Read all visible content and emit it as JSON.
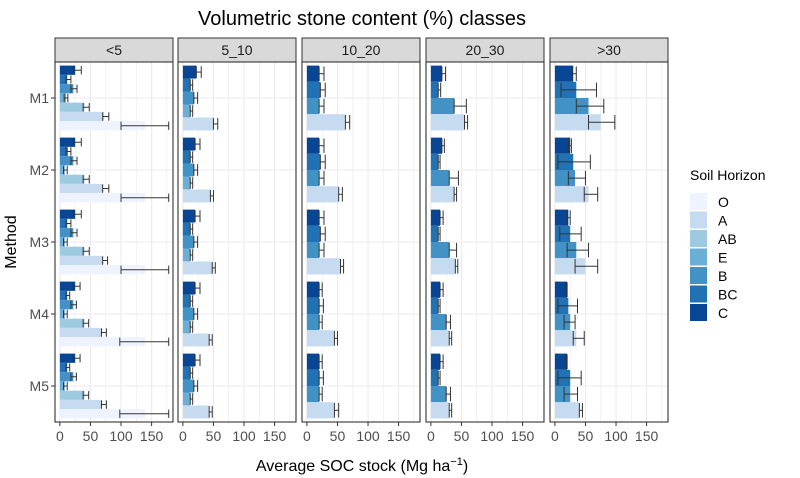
{
  "chart_data": {
    "type": "bar",
    "orientation": "horizontal",
    "title": "Volumetric stone content (%) classes",
    "xlabel": "Average SOC stock (Mg ha",
    "xlabel_sup": "−1",
    "xlabel_end": ")",
    "ylabel": "Method",
    "xlim": [
      -8,
      185
    ],
    "xticks": [
      0,
      50,
      100,
      150
    ],
    "grid": true,
    "methods": [
      "M1",
      "M2",
      "M3",
      "M4",
      "M5"
    ],
    "legend": {
      "title": "Soil Horizon",
      "position": "right",
      "entries": [
        {
          "name": "O",
          "color": "#eff3ff"
        },
        {
          "name": "A",
          "color": "#c6dbef"
        },
        {
          "name": "AB",
          "color": "#9ecae1"
        },
        {
          "name": "E",
          "color": "#6baed6"
        },
        {
          "name": "B",
          "color": "#4292c6"
        },
        {
          "name": "BC",
          "color": "#2171b5"
        },
        {
          "name": "C",
          "color": "#084594"
        }
      ]
    },
    "panels": [
      {
        "label": "<5",
        "horizons": [
          "C",
          "BC",
          "B",
          "E",
          "AB",
          "A",
          "O"
        ],
        "values": [
          [
            [
              25,
              22,
              35
            ],
            [
              12,
              10,
              18
            ],
            [
              22,
              18,
              28
            ],
            [
              10,
              7,
              13
            ],
            [
              40,
              38,
              48
            ],
            [
              72,
              70,
              80
            ],
            [
              140,
              100,
              178
            ]
          ],
          [
            [
              25,
              22,
              35
            ],
            [
              13,
              10,
              18
            ],
            [
              22,
              18,
              28
            ],
            [
              8,
              6,
              12
            ],
            [
              40,
              38,
              48
            ],
            [
              70,
              70,
              80
            ],
            [
              140,
              100,
              178
            ]
          ],
          [
            [
              25,
              22,
              35
            ],
            [
              12,
              10,
              18
            ],
            [
              22,
              18,
              28
            ],
            [
              8,
              6,
              12
            ],
            [
              40,
              38,
              48
            ],
            [
              70,
              70,
              78
            ],
            [
              140,
              100,
              178
            ]
          ],
          [
            [
              25,
              22,
              33
            ],
            [
              12,
              10,
              16
            ],
            [
              22,
              18,
              27
            ],
            [
              8,
              6,
              12
            ],
            [
              40,
              38,
              47
            ],
            [
              68,
              68,
              76
            ],
            [
              140,
              98,
              178
            ]
          ],
          [
            [
              25,
              22,
              33
            ],
            [
              12,
              10,
              16
            ],
            [
              22,
              18,
              27
            ],
            [
              8,
              6,
              12
            ],
            [
              40,
              38,
              47
            ],
            [
              68,
              68,
              76
            ],
            [
              140,
              98,
              178
            ]
          ]
        ]
      },
      {
        "label": "5_10",
        "horizons": [
          "C",
          "BC",
          "B",
          "E",
          "A"
        ],
        "values": [
          [
            [
              22,
              22,
              30
            ],
            [
              12,
              12,
              16
            ],
            [
              18,
              18,
              24
            ],
            [
              12,
              12,
              16
            ],
            [
              50,
              50,
              57
            ]
          ],
          [
            [
              20,
              20,
              28
            ],
            [
              12,
              12,
              16
            ],
            [
              18,
              18,
              24
            ],
            [
              12,
              12,
              16
            ],
            [
              45,
              45,
              50
            ]
          ],
          [
            [
              20,
              20,
              28
            ],
            [
              12,
              12,
              16
            ],
            [
              18,
              18,
              24
            ],
            [
              12,
              12,
              16
            ],
            [
              48,
              48,
              53
            ]
          ],
          [
            [
              20,
              20,
              28
            ],
            [
              12,
              12,
              16
            ],
            [
              18,
              18,
              24
            ],
            [
              12,
              12,
              16
            ],
            [
              43,
              43,
              48
            ]
          ],
          [
            [
              20,
              20,
              28
            ],
            [
              12,
              12,
              16
            ],
            [
              18,
              18,
              24
            ],
            [
              12,
              12,
              16
            ],
            [
              43,
              43,
              48
            ]
          ]
        ]
      },
      {
        "label": "10_20",
        "horizons": [
          "C",
          "BC",
          "B",
          "A"
        ],
        "values": [
          [
            [
              20,
              20,
              28
            ],
            [
              22,
              22,
              30
            ],
            [
              20,
              20,
              28
            ],
            [
              63,
              63,
              70
            ]
          ],
          [
            [
              20,
              20,
              28
            ],
            [
              22,
              22,
              30
            ],
            [
              20,
              20,
              28
            ],
            [
              52,
              52,
              58
            ]
          ],
          [
            [
              20,
              20,
              28
            ],
            [
              22,
              22,
              30
            ],
            [
              20,
              20,
              28
            ],
            [
              55,
              55,
              60
            ]
          ],
          [
            [
              20,
              20,
              25
            ],
            [
              20,
              20,
              27
            ],
            [
              20,
              20,
              25
            ],
            [
              45,
              45,
              50
            ]
          ],
          [
            [
              20,
              20,
              25
            ],
            [
              20,
              20,
              27
            ],
            [
              20,
              20,
              25
            ],
            [
              45,
              45,
              52
            ]
          ]
        ]
      },
      {
        "label": "20_30",
        "horizons": [
          "C",
          "BC",
          "B",
          "A"
        ],
        "values": [
          [
            [
              18,
              18,
              24
            ],
            [
              12,
              12,
              16
            ],
            [
              38,
              38,
              58
            ],
            [
              55,
              55,
              60
            ]
          ],
          [
            [
              18,
              18,
              22
            ],
            [
              12,
              12,
              15
            ],
            [
              30,
              30,
              45
            ],
            [
              38,
              38,
              42
            ]
          ],
          [
            [
              15,
              15,
              20
            ],
            [
              12,
              12,
              15
            ],
            [
              30,
              30,
              42
            ],
            [
              40,
              40,
              44
            ]
          ],
          [
            [
              15,
              15,
              20
            ],
            [
              12,
              12,
              15
            ],
            [
              25,
              25,
              32
            ],
            [
              30,
              30,
              34
            ]
          ],
          [
            [
              15,
              15,
              20
            ],
            [
              12,
              12,
              15
            ],
            [
              25,
              25,
              32
            ],
            [
              30,
              30,
              34
            ]
          ]
        ]
      },
      {
        "label": ">30",
        "horizons": [
          "C",
          "BC",
          "B",
          "A"
        ],
        "values": [
          [
            [
              30,
              28,
              35
            ],
            [
              35,
              10,
              68
            ],
            [
              55,
              35,
              80
            ],
            [
              75,
              55,
              98
            ]
          ],
          [
            [
              25,
              22,
              27
            ],
            [
              30,
              5,
              58
            ],
            [
              33,
              22,
              50
            ],
            [
              55,
              48,
              70
            ]
          ],
          [
            [
              22,
              20,
              25
            ],
            [
              25,
              8,
              43
            ],
            [
              35,
              20,
              55
            ],
            [
              50,
              33,
              70
            ]
          ],
          [
            [
              20,
              18,
              20
            ],
            [
              22,
              5,
              37
            ],
            [
              25,
              15,
              33
            ],
            [
              35,
              30,
              48
            ]
          ],
          [
            [
              20,
              18,
              20
            ],
            [
              25,
              5,
              43
            ],
            [
              25,
              15,
              37
            ],
            [
              40,
              40,
              45
            ]
          ]
        ]
      }
    ]
  }
}
